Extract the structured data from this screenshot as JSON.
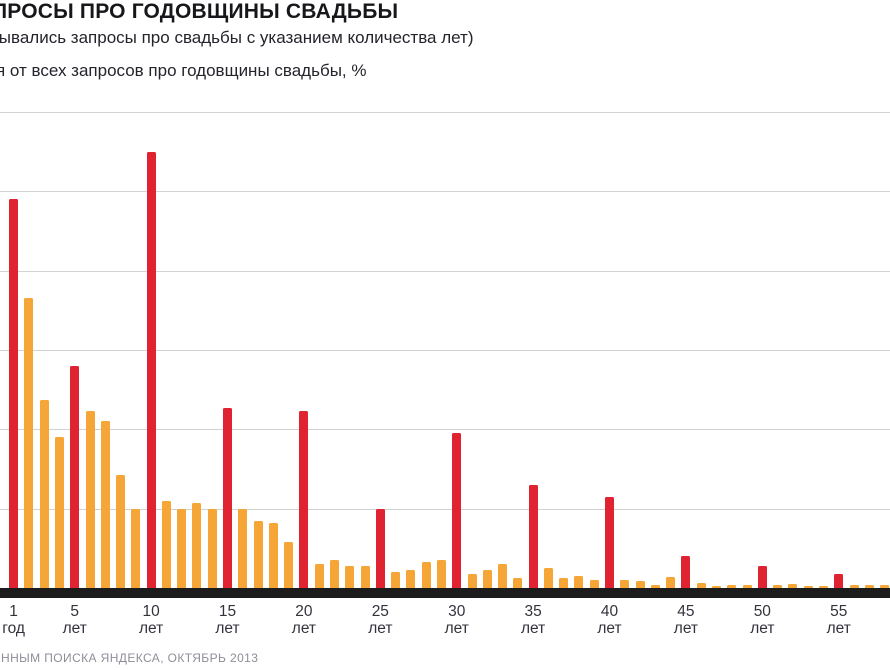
{
  "header": {
    "title": "ПРОСЫ ПРО ГОДОВЩИНЫ СВАДЬБЫ",
    "subtitle": "тывались запросы про свадьбы с указанием количества лет)",
    "unit_note": "я от всех запросов про годовщины свадьбы, %"
  },
  "footer": {
    "source": "ННЫМ ПОИСКА ЯНДЕКСА, ОКТЯБРЬ 2013"
  },
  "colors": {
    "milestone_bar": "#e02330",
    "regular_bar": "#f5a636",
    "gridline": "#d2d2d2",
    "axis_line": "#1c1c1c",
    "tick_label": "#33333c",
    "footer_text": "#8e8e99"
  },
  "chart_data": {
    "type": "bar",
    "title": "ПРОСЫ ПРО ГОДОВЩИНЫ СВАДЬБЫ",
    "subtitle": "тывались запросы про свадьбы с указанием количества лет)",
    "ylabel": "я от всех запросов про годовщины свадьбы, %",
    "ylim": [
      0,
      12
    ],
    "grid_step": 2,
    "grid": true,
    "legend": "none",
    "x": [
      1,
      2,
      3,
      4,
      5,
      6,
      7,
      8,
      9,
      10,
      11,
      12,
      13,
      14,
      15,
      16,
      17,
      18,
      19,
      20,
      21,
      22,
      23,
      24,
      25,
      26,
      27,
      28,
      29,
      30,
      31,
      32,
      33,
      34,
      35,
      36,
      37,
      38,
      39,
      40,
      41,
      42,
      43,
      44,
      45,
      46,
      47,
      48,
      49,
      50,
      51,
      52,
      53,
      54,
      55,
      56,
      57,
      58
    ],
    "values": [
      9.8,
      7.3,
      4.75,
      3.8,
      5.6,
      4.45,
      4.2,
      2.85,
      2.0,
      11.0,
      2.2,
      2.0,
      2.15,
      2.0,
      4.55,
      2.0,
      1.7,
      1.65,
      1.15,
      4.45,
      0.6,
      0.7,
      0.55,
      0.55,
      2.0,
      0.4,
      0.45,
      0.65,
      0.7,
      3.9,
      0.35,
      0.45,
      0.6,
      0.25,
      2.6,
      0.5,
      0.25,
      0.3,
      0.2,
      2.3,
      0.2,
      0.18,
      0.08,
      0.27,
      0.8,
      0.12,
      0.06,
      0.08,
      0.08,
      0.55,
      0.08,
      0.1,
      0.06,
      0.06,
      0.35,
      0.08,
      0.08,
      0.08
    ],
    "milestone_years": [
      1,
      5,
      10,
      15,
      20,
      25,
      30,
      35,
      40,
      45,
      50,
      55
    ],
    "x_ticks": [
      {
        "year": 1,
        "line1": "1",
        "line2": "год"
      },
      {
        "year": 5,
        "line1": "5",
        "line2": "лет"
      },
      {
        "year": 10,
        "line1": "10",
        "line2": "лет"
      },
      {
        "year": 15,
        "line1": "15",
        "line2": "лет"
      },
      {
        "year": 20,
        "line1": "20",
        "line2": "лет"
      },
      {
        "year": 25,
        "line1": "25",
        "line2": "лет"
      },
      {
        "year": 30,
        "line1": "30",
        "line2": "лет"
      },
      {
        "year": 35,
        "line1": "35",
        "line2": "лет"
      },
      {
        "year": 40,
        "line1": "40",
        "line2": "лет"
      },
      {
        "year": 45,
        "line1": "45",
        "line2": "лет"
      },
      {
        "year": 50,
        "line1": "50",
        "line2": "лет"
      },
      {
        "year": 55,
        "line1": "55",
        "line2": "лет"
      }
    ]
  }
}
